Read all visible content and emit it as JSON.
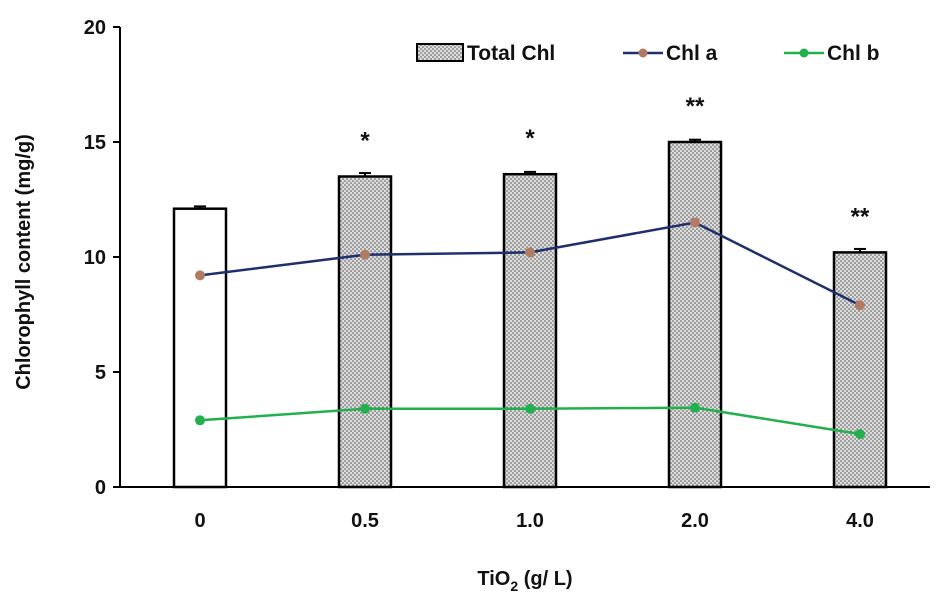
{
  "chart_data": {
    "type": "bar",
    "title": "",
    "xlabel_main": "TiO",
    "xlabel_sub": "2",
    "xlabel_rest": " (g/ L)",
    "ylabel": "Chlorophyll content (mg/g)",
    "ylim": [
      0,
      20
    ],
    "yticks": [
      "0",
      "5",
      "10",
      "15",
      "20"
    ],
    "categories": [
      "0",
      "0.5",
      "1.0",
      "2.0",
      "4.0"
    ],
    "series": [
      {
        "name": "Total Chl",
        "kind": "bar",
        "values": [
          12.1,
          13.5,
          13.6,
          15.0,
          10.2
        ],
        "errors": [
          0.1,
          0.15,
          0.1,
          0.1,
          0.15
        ]
      },
      {
        "name": "Chl a",
        "kind": "line",
        "color": "#1f2f6e",
        "marker": "#b07a63",
        "values": [
          9.2,
          10.1,
          10.2,
          11.5,
          7.9
        ]
      },
      {
        "name": "Chl b",
        "kind": "line",
        "color": "#22b04e",
        "marker": "#22b04e",
        "values": [
          2.9,
          3.4,
          3.4,
          3.45,
          2.3
        ]
      }
    ],
    "significance": [
      "",
      "*",
      "*",
      "**",
      "**"
    ],
    "legend": [
      "Total Chl",
      "Chl a",
      "Chl b"
    ],
    "legend_position": "top-right",
    "grid": false
  }
}
